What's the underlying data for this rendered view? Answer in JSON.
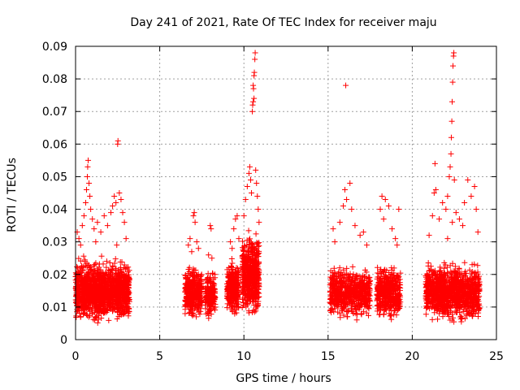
{
  "chart_data": {
    "type": "scatter",
    "title": "Day 241 of 2021, Rate Of TEC Index for receiver maju",
    "xlabel": "GPS time / hours",
    "ylabel": "ROTI / TECUs",
    "xlim": [
      0,
      25
    ],
    "ylim": [
      0,
      0.09
    ],
    "xticks": [
      0,
      5,
      10,
      15,
      20,
      25
    ],
    "xtick_labels": [
      "0",
      "5",
      "10",
      "15",
      "20",
      "25"
    ],
    "yticks": [
      0,
      0.01,
      0.02,
      0.03,
      0.04,
      0.05,
      0.06,
      0.07,
      0.08,
      0.09
    ],
    "ytick_labels": [
      "0",
      "0.01",
      "0.02",
      "0.03",
      "0.04",
      "0.05",
      "0.06",
      "0.07",
      "0.08",
      "0.09"
    ],
    "grid": true,
    "marker": "plus",
    "color": "#ff0000",
    "dense_clusters": [
      {
        "x_range": [
          0.0,
          3.2
        ],
        "y_range": [
          0.004,
          0.026
        ],
        "count": 1400
      },
      {
        "x_range": [
          6.5,
          7.5
        ],
        "y_range": [
          0.005,
          0.024
        ],
        "count": 380
      },
      {
        "x_range": [
          7.7,
          8.3
        ],
        "y_range": [
          0.006,
          0.022
        ],
        "count": 160
      },
      {
        "x_range": [
          9.0,
          9.7
        ],
        "y_range": [
          0.006,
          0.026
        ],
        "count": 280
      },
      {
        "x_range": [
          9.9,
          10.9
        ],
        "y_range": [
          0.005,
          0.035
        ],
        "count": 520
      },
      {
        "x_range": [
          15.1,
          17.5
        ],
        "y_range": [
          0.005,
          0.024
        ],
        "count": 620
      },
      {
        "x_range": [
          17.9,
          19.3
        ],
        "y_range": [
          0.005,
          0.024
        ],
        "count": 420
      },
      {
        "x_range": [
          20.8,
          24.0
        ],
        "y_range": [
          0.004,
          0.025
        ],
        "count": 1100
      }
    ],
    "points": [
      {
        "x": 0.1,
        "y": 0.033
      },
      {
        "x": 0.2,
        "y": 0.031
      },
      {
        "x": 0.3,
        "y": 0.029
      },
      {
        "x": 0.4,
        "y": 0.035
      },
      {
        "x": 0.5,
        "y": 0.038
      },
      {
        "x": 0.6,
        "y": 0.042
      },
      {
        "x": 0.65,
        "y": 0.046
      },
      {
        "x": 0.7,
        "y": 0.05
      },
      {
        "x": 0.72,
        "y": 0.053
      },
      {
        "x": 0.75,
        "y": 0.055
      },
      {
        "x": 0.8,
        "y": 0.048
      },
      {
        "x": 0.85,
        "y": 0.044
      },
      {
        "x": 0.9,
        "y": 0.04
      },
      {
        "x": 1.0,
        "y": 0.037
      },
      {
        "x": 1.1,
        "y": 0.034
      },
      {
        "x": 1.3,
        "y": 0.036
      },
      {
        "x": 1.5,
        "y": 0.033
      },
      {
        "x": 1.7,
        "y": 0.038
      },
      {
        "x": 1.9,
        "y": 0.035
      },
      {
        "x": 2.1,
        "y": 0.039
      },
      {
        "x": 2.2,
        "y": 0.041
      },
      {
        "x": 2.3,
        "y": 0.044
      },
      {
        "x": 2.4,
        "y": 0.042
      },
      {
        "x": 2.5,
        "y": 0.06
      },
      {
        "x": 2.52,
        "y": 0.061
      },
      {
        "x": 2.6,
        "y": 0.045
      },
      {
        "x": 2.7,
        "y": 0.043
      },
      {
        "x": 2.8,
        "y": 0.039
      },
      {
        "x": 2.9,
        "y": 0.036
      },
      {
        "x": 3.0,
        "y": 0.031
      },
      {
        "x": 2.45,
        "y": 0.029
      },
      {
        "x": 1.2,
        "y": 0.03
      },
      {
        "x": 6.7,
        "y": 0.029
      },
      {
        "x": 6.8,
        "y": 0.031
      },
      {
        "x": 7.0,
        "y": 0.038
      },
      {
        "x": 7.05,
        "y": 0.039
      },
      {
        "x": 7.1,
        "y": 0.036
      },
      {
        "x": 7.2,
        "y": 0.03
      },
      {
        "x": 7.3,
        "y": 0.028
      },
      {
        "x": 6.9,
        "y": 0.027
      },
      {
        "x": 8.0,
        "y": 0.035
      },
      {
        "x": 8.05,
        "y": 0.034
      },
      {
        "x": 7.9,
        "y": 0.026
      },
      {
        "x": 8.1,
        "y": 0.025
      },
      {
        "x": 9.2,
        "y": 0.03
      },
      {
        "x": 9.4,
        "y": 0.034
      },
      {
        "x": 9.5,
        "y": 0.037
      },
      {
        "x": 9.6,
        "y": 0.038
      },
      {
        "x": 9.3,
        "y": 0.028
      },
      {
        "x": 9.7,
        "y": 0.031
      },
      {
        "x": 10.0,
        "y": 0.038
      },
      {
        "x": 10.1,
        "y": 0.043
      },
      {
        "x": 10.2,
        "y": 0.047
      },
      {
        "x": 10.3,
        "y": 0.051
      },
      {
        "x": 10.35,
        "y": 0.053
      },
      {
        "x": 10.4,
        "y": 0.049
      },
      {
        "x": 10.45,
        "y": 0.045
      },
      {
        "x": 10.5,
        "y": 0.07
      },
      {
        "x": 10.52,
        "y": 0.072
      },
      {
        "x": 10.55,
        "y": 0.073
      },
      {
        "x": 10.57,
        "y": 0.077
      },
      {
        "x": 10.6,
        "y": 0.081
      },
      {
        "x": 10.62,
        "y": 0.082
      },
      {
        "x": 10.65,
        "y": 0.086
      },
      {
        "x": 10.67,
        "y": 0.088
      },
      {
        "x": 10.7,
        "y": 0.052
      },
      {
        "x": 10.75,
        "y": 0.048
      },
      {
        "x": 10.8,
        "y": 0.044
      },
      {
        "x": 10.85,
        "y": 0.04
      },
      {
        "x": 10.9,
        "y": 0.036
      },
      {
        "x": 10.55,
        "y": 0.078
      },
      {
        "x": 10.6,
        "y": 0.074
      },
      {
        "x": 15.3,
        "y": 0.034
      },
      {
        "x": 15.4,
        "y": 0.03
      },
      {
        "x": 15.7,
        "y": 0.036
      },
      {
        "x": 15.9,
        "y": 0.041
      },
      {
        "x": 16.0,
        "y": 0.046
      },
      {
        "x": 16.05,
        "y": 0.078
      },
      {
        "x": 16.1,
        "y": 0.043
      },
      {
        "x": 16.3,
        "y": 0.048
      },
      {
        "x": 16.4,
        "y": 0.04
      },
      {
        "x": 16.6,
        "y": 0.035
      },
      {
        "x": 16.9,
        "y": 0.032
      },
      {
        "x": 17.1,
        "y": 0.033
      },
      {
        "x": 17.3,
        "y": 0.029
      },
      {
        "x": 18.1,
        "y": 0.04
      },
      {
        "x": 18.2,
        "y": 0.044
      },
      {
        "x": 18.4,
        "y": 0.043
      },
      {
        "x": 18.6,
        "y": 0.041
      },
      {
        "x": 18.8,
        "y": 0.034
      },
      {
        "x": 19.0,
        "y": 0.031
      },
      {
        "x": 19.1,
        "y": 0.029
      },
      {
        "x": 19.2,
        "y": 0.04
      },
      {
        "x": 18.3,
        "y": 0.037
      },
      {
        "x": 21.0,
        "y": 0.032
      },
      {
        "x": 21.2,
        "y": 0.038
      },
      {
        "x": 21.3,
        "y": 0.045
      },
      {
        "x": 21.35,
        "y": 0.054
      },
      {
        "x": 21.4,
        "y": 0.046
      },
      {
        "x": 21.6,
        "y": 0.037
      },
      {
        "x": 21.8,
        "y": 0.042
      },
      {
        "x": 22.0,
        "y": 0.04
      },
      {
        "x": 22.1,
        "y": 0.044
      },
      {
        "x": 22.2,
        "y": 0.05
      },
      {
        "x": 22.25,
        "y": 0.053
      },
      {
        "x": 22.3,
        "y": 0.057
      },
      {
        "x": 22.32,
        "y": 0.062
      },
      {
        "x": 22.35,
        "y": 0.067
      },
      {
        "x": 22.37,
        "y": 0.073
      },
      {
        "x": 22.4,
        "y": 0.079
      },
      {
        "x": 22.42,
        "y": 0.084
      },
      {
        "x": 22.45,
        "y": 0.087
      },
      {
        "x": 22.47,
        "y": 0.088
      },
      {
        "x": 22.5,
        "y": 0.049
      },
      {
        "x": 22.6,
        "y": 0.039
      },
      {
        "x": 22.8,
        "y": 0.037
      },
      {
        "x": 23.0,
        "y": 0.035
      },
      {
        "x": 23.1,
        "y": 0.042
      },
      {
        "x": 23.3,
        "y": 0.049
      },
      {
        "x": 23.5,
        "y": 0.044
      },
      {
        "x": 23.7,
        "y": 0.047
      },
      {
        "x": 23.8,
        "y": 0.04
      },
      {
        "x": 23.9,
        "y": 0.033
      },
      {
        "x": 22.38,
        "y": 0.036
      },
      {
        "x": 22.1,
        "y": 0.031
      }
    ]
  }
}
